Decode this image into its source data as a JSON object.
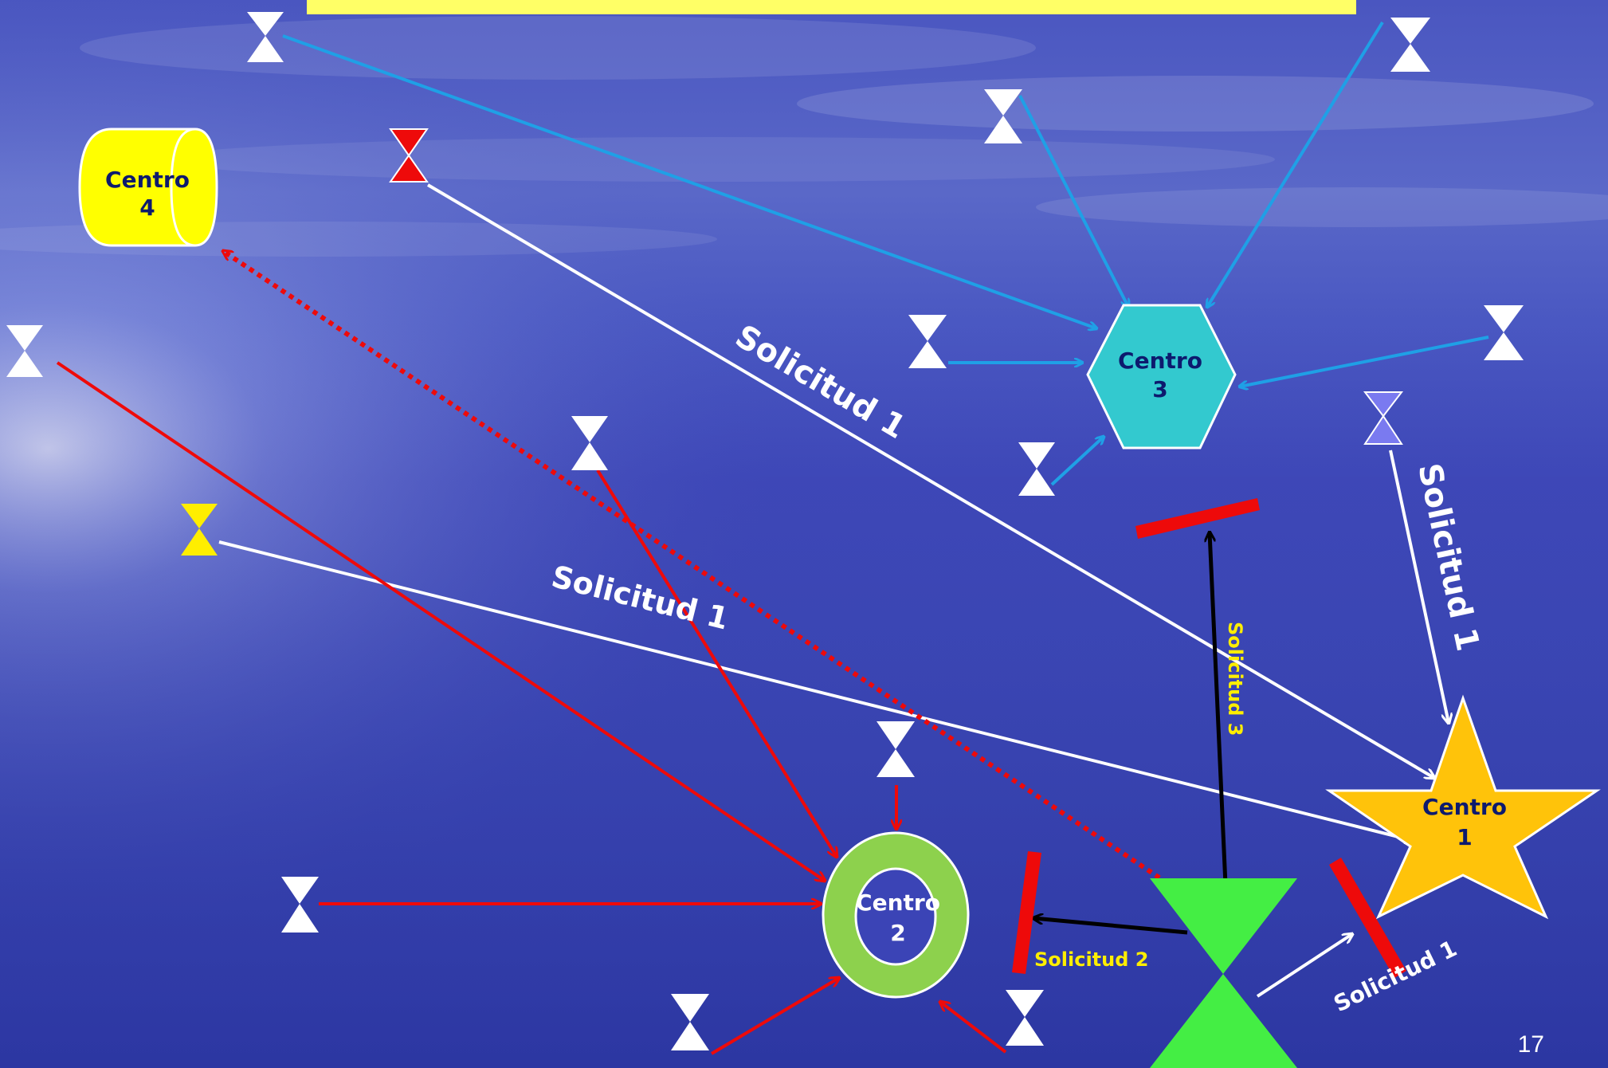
{
  "title_bar": {
    "text": ""
  },
  "colors": {
    "arrow_blue": "#1fa0e6",
    "arrow_white": "#ffffff",
    "arrow_red": "#ee0a0a",
    "arrow_black": "#000000",
    "label_white": "#ffffff",
    "label_yellow": "#ffee00",
    "center_label": "#0d1a6e"
  },
  "centers": {
    "c1": {
      "line1": "Centro",
      "line2": "1"
    },
    "c2": {
      "line1": "Centro",
      "line2": "2"
    },
    "c3": {
      "line1": "Centro",
      "line2": "3"
    },
    "c4": {
      "line1": "Centro",
      "line2": "4"
    }
  },
  "labels": {
    "sol1_diag": "Solicitud 1",
    "sol1_mid": "Solicitud 1",
    "sol1_right": "Solicitud 1",
    "sol1_bottom": "Solicitud 1",
    "sol2": "Solicitud 2",
    "sol3": "Solicitud 3"
  },
  "page_number": "17"
}
